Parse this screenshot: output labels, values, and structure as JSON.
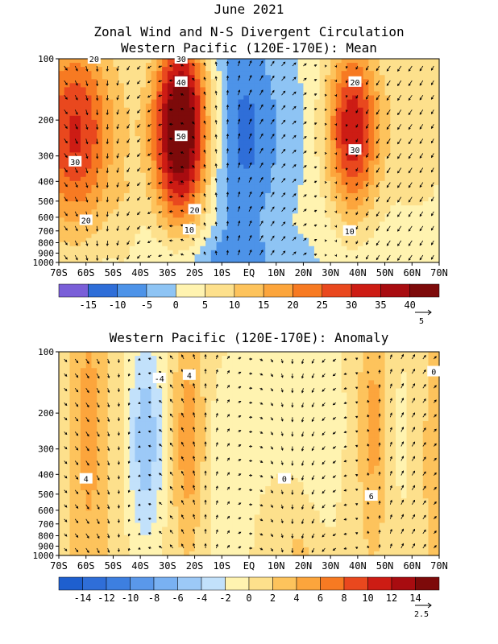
{
  "titles": {
    "line1": "June 2021",
    "line2": "Zonal Wind and N-S Divergent Circulation",
    "line3": "Western Pacific (120E-170E): Mean",
    "panel2": "Western Pacific (120E-170E): Anomaly"
  },
  "chart_data": [
    {
      "type": "heatmap",
      "title": "Western Pacific (120E-170E): Mean",
      "x_ticks": [
        "70S",
        "60S",
        "50S",
        "40S",
        "30S",
        "20S",
        "10S",
        "EQ",
        "10N",
        "20N",
        "30N",
        "40N",
        "50N",
        "60N",
        "70N"
      ],
      "y_ticks": [
        "100",
        "200",
        "300",
        "400",
        "500",
        "600",
        "700",
        "800",
        "900",
        "1000"
      ],
      "y_scale": "log-pressure (hPa)",
      "contour_labels": [
        {
          "text": "20",
          "lat": -57,
          "lev": 100
        },
        {
          "text": "30",
          "lat": -25,
          "lev": 100
        },
        {
          "text": "40",
          "lat": -25,
          "lev": 130
        },
        {
          "text": "50",
          "lat": -25,
          "lev": 240
        },
        {
          "text": "30",
          "lat": -64,
          "lev": 320
        },
        {
          "text": "20",
          "lat": -20,
          "lev": 550
        },
        {
          "text": "20",
          "lat": -60,
          "lev": 620
        },
        {
          "text": "10",
          "lat": -22,
          "lev": 690
        },
        {
          "text": "20",
          "lat": 39,
          "lev": 130
        },
        {
          "text": "30",
          "lat": 39,
          "lev": 280
        },
        {
          "text": "10",
          "lat": 37,
          "lev": 700
        }
      ],
      "colorbar": {
        "labels": [
          "-15",
          "-10",
          "-5",
          "0",
          "5",
          "10",
          "15",
          "20",
          "25",
          "30",
          "35",
          "40"
        ],
        "colors": [
          "#7a5fd8",
          "#2f6ed8",
          "#4d93e8",
          "#8ec4f4",
          "#fff3b0",
          "#fde08c",
          "#fdc35c",
          "#fca53c",
          "#f77a22",
          "#e9481e",
          "#cd1c14",
          "#a80c10",
          "#7d0a0a"
        ]
      },
      "vector_reference": "5",
      "jets": [
        {
          "lat": -63,
          "lev": 260,
          "peak": 30
        },
        {
          "lat": -25,
          "lev": 220,
          "peak": 50
        },
        {
          "lat": 38,
          "lev": 220,
          "peak": 30
        }
      ]
    },
    {
      "type": "heatmap",
      "title": "Western Pacific (120E-170E): Anomaly",
      "x_ticks": [
        "70S",
        "60S",
        "50S",
        "40S",
        "30S",
        "20S",
        "10S",
        "EQ",
        "10N",
        "20N",
        "30N",
        "40N",
        "50N",
        "60N",
        "70N"
      ],
      "y_ticks": [
        "100",
        "200",
        "300",
        "400",
        "500",
        "600",
        "700",
        "800",
        "900",
        "1000"
      ],
      "y_scale": "log-pressure (hPa)",
      "contour_labels": [
        {
          "text": "-4",
          "lat": -33,
          "lev": 135
        },
        {
          "text": "4",
          "lat": -22,
          "lev": 130
        },
        {
          "text": "4",
          "lat": -60,
          "lev": 420
        },
        {
          "text": "0",
          "lat": 13,
          "lev": 420
        },
        {
          "text": "6",
          "lat": 45,
          "lev": 510
        },
        {
          "text": "0",
          "lat": 68,
          "lev": 125
        }
      ],
      "colorbar": {
        "labels": [
          "-14",
          "-12",
          "-10",
          "-8",
          "-6",
          "-4",
          "-2",
          "0",
          "2",
          "4",
          "6",
          "8",
          "10",
          "12",
          "14"
        ],
        "colors": [
          "#1e5fcf",
          "#2f6ed8",
          "#3d7fe0",
          "#5a98ea",
          "#79b1f2",
          "#9cc9f7",
          "#c2e1fb",
          "#fff3b0",
          "#fde08c",
          "#fdc35c",
          "#fca53c",
          "#f77a22",
          "#e9481e",
          "#cd1c14",
          "#a80c10",
          "#7d0a0a"
        ]
      },
      "vector_reference": "2.5"
    }
  ]
}
